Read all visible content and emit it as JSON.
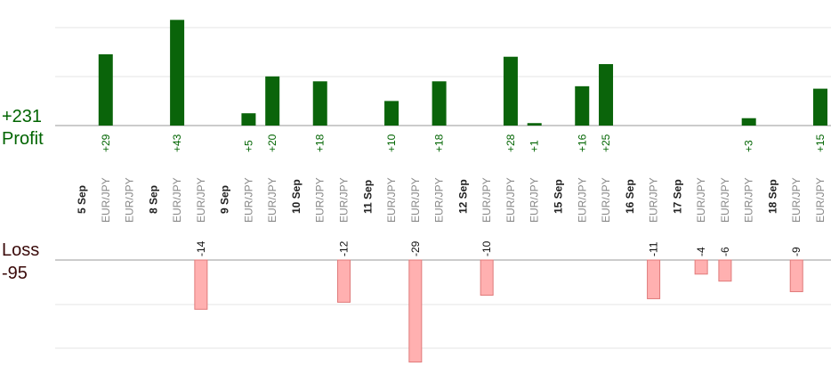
{
  "summary": {
    "profit_total": "+231",
    "profit_caption": "Profit",
    "loss_caption": "Loss",
    "loss_total": "-95"
  },
  "colors": {
    "profit_bar": "#0a640a",
    "profit_text": "#006400",
    "loss_bar": "#ffb0b0",
    "loss_bar_stroke": "#e07a7a",
    "loss_text": "#111111",
    "date_text": "#222222",
    "pair_text": "#888888",
    "grid": "#e6e6e6",
    "axis": "#999999"
  },
  "chart_data": {
    "type": "bar",
    "title": "",
    "xlabel": "",
    "ylabel": "",
    "grid": true,
    "groups": [
      {
        "date": "5 Sep",
        "trades": [
          {
            "pair": "EUR/JPY",
            "value": 29
          },
          {
            "pair": "EUR/JPY",
            "value": null
          }
        ]
      },
      {
        "date": "8 Sep",
        "trades": [
          {
            "pair": "EUR/JPY",
            "value": 43
          },
          {
            "pair": "EUR/JPY",
            "value": -14
          }
        ]
      },
      {
        "date": "9 Sep",
        "trades": [
          {
            "pair": "EUR/JPY",
            "value": 5
          },
          {
            "pair": "EUR/JPY",
            "value": 20
          }
        ]
      },
      {
        "date": "10 Sep",
        "trades": [
          {
            "pair": "EUR/JPY",
            "value": 18
          },
          {
            "pair": "EUR/JPY",
            "value": -12
          }
        ]
      },
      {
        "date": "11 Sep",
        "trades": [
          {
            "pair": "EUR/JPY",
            "value": 10
          },
          {
            "pair": "EUR/JPY",
            "value": -29
          },
          {
            "pair": "EUR/JPY",
            "value": 18
          }
        ]
      },
      {
        "date": "12 Sep",
        "trades": [
          {
            "pair": "EUR/JPY",
            "value": -10
          },
          {
            "pair": "EUR/JPY",
            "value": 28
          },
          {
            "pair": "EUR/JPY",
            "value": 1
          }
        ]
      },
      {
        "date": "15 Sep",
        "trades": [
          {
            "pair": "EUR/JPY",
            "value": 16
          },
          {
            "pair": "EUR/JPY",
            "value": 25
          }
        ]
      },
      {
        "date": "16 Sep",
        "trades": [
          {
            "pair": "EUR/JPY",
            "value": -11
          }
        ]
      },
      {
        "date": "17 Sep",
        "trades": [
          {
            "pair": "EUR/JPY",
            "value": -4
          },
          {
            "pair": "EUR/JPY",
            "value": -6
          },
          {
            "pair": "EUR/JPY",
            "value": 3
          }
        ]
      },
      {
        "date": "18 Sep",
        "trades": [
          {
            "pair": "EUR/JPY",
            "value": -9
          },
          {
            "pair": "EUR/JPY",
            "value": 15
          }
        ]
      }
    ]
  }
}
